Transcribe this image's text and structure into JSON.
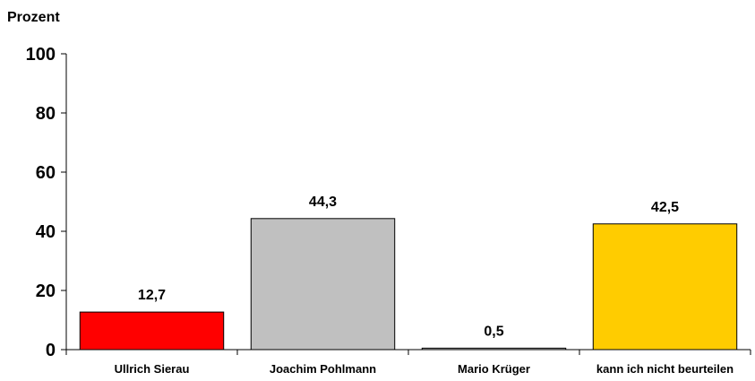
{
  "chart_data": {
    "type": "bar",
    "title": "",
    "ylabel": "Prozent",
    "xlabel": "",
    "ylim": [
      0,
      100
    ],
    "yticks": [
      0,
      20,
      40,
      60,
      80,
      100
    ],
    "grid": false,
    "legend": "none",
    "categories": [
      "Ullrich Sierau",
      "Joachim Pohlmann",
      "Mario Krüger",
      "kann ich nicht beurteilen"
    ],
    "values": [
      12.7,
      44.3,
      0.5,
      42.5
    ],
    "value_labels": [
      "12,7",
      "44,3",
      "0,5",
      "42,5"
    ],
    "colors": [
      "#ff0000",
      "#c0c0c0",
      "#c0c0c0",
      "#ffcc00"
    ]
  }
}
